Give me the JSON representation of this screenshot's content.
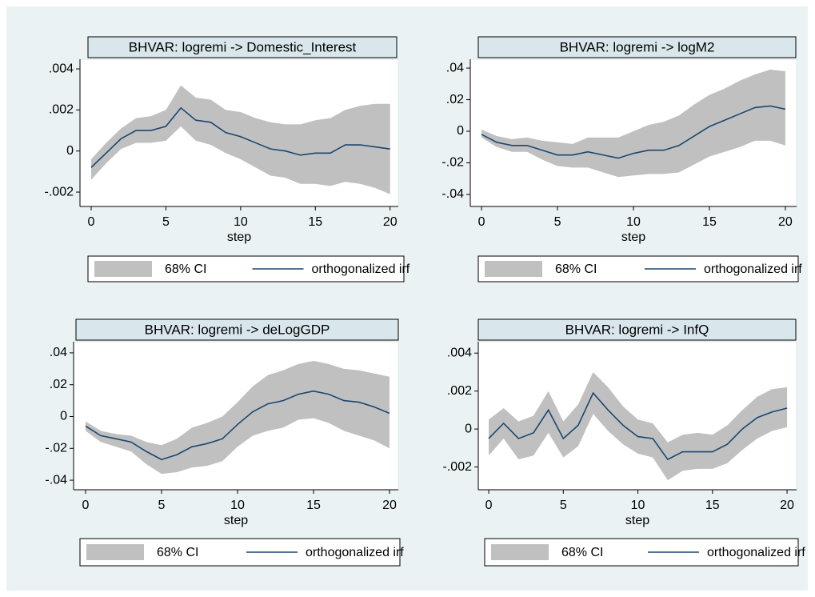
{
  "chart_data": [
    {
      "type": "line",
      "title": "BHVAR: logremi -> Domestic_Interest",
      "xlabel": "step",
      "x": [
        0,
        1,
        2,
        3,
        4,
        5,
        6,
        7,
        8,
        9,
        10,
        11,
        12,
        13,
        14,
        15,
        16,
        17,
        18,
        19,
        20
      ],
      "xlim": [
        -0.75,
        20.55
      ],
      "xticks": [
        0,
        5,
        10,
        15,
        20
      ],
      "ylim": [
        -0.0027,
        0.00447
      ],
      "yticks": [
        {
          "value": -0.002,
          "label": "-.002"
        },
        0,
        {
          "value": 0.002,
          "label": ".002"
        },
        {
          "value": 0.004,
          "label": ".004"
        }
      ],
      "legend": "bottom",
      "series": [
        {
          "name": "68% CI",
          "color": "#c0c0c0",
          "lower": [
            -0.0014,
            -0.0006,
            0.0001,
            0.0004,
            0.0004,
            0.0005,
            0.0012,
            0.0005,
            0.0003,
            -0.0001,
            -0.0004,
            -0.0008,
            -0.0012,
            -0.0013,
            -0.0016,
            -0.0016,
            -0.0017,
            -0.0015,
            -0.0016,
            -0.0018,
            -0.0021
          ],
          "upper": [
            -0.0004,
            0.0004,
            0.0011,
            0.0016,
            0.0017,
            0.002,
            0.0032,
            0.0026,
            0.0025,
            0.002,
            0.0019,
            0.0016,
            0.0014,
            0.0013,
            0.0013,
            0.0015,
            0.0016,
            0.002,
            0.0022,
            0.0023,
            0.0023
          ]
        },
        {
          "name": "orthogonalized irf",
          "color": "#1a476f",
          "values": [
            -0.0008,
            -0.0001,
            0.0006,
            0.001,
            0.001,
            0.0012,
            0.0021,
            0.0015,
            0.0014,
            0.0009,
            0.0007,
            0.0004,
            0.0001,
            0.0,
            -0.0002,
            -0.0001,
            -0.0001,
            0.0003,
            0.0003,
            0.0002,
            0.0001
          ]
        }
      ]
    },
    {
      "type": "line",
      "title": "BHVAR: logremi -> logM2",
      "xlabel": "step",
      "x": [
        0,
        1,
        2,
        3,
        4,
        5,
        6,
        7,
        8,
        9,
        10,
        11,
        12,
        13,
        14,
        15,
        16,
        17,
        18,
        19,
        20
      ],
      "xlim": [
        -0.74,
        20.74
      ],
      "xticks": [
        0,
        5,
        10,
        15,
        20
      ],
      "ylim": [
        -0.0476,
        0.0456
      ],
      "yticks": [
        {
          "value": -0.04,
          "label": "-.04"
        },
        {
          "value": -0.02,
          "label": "-.02"
        },
        0,
        {
          "value": 0.02,
          "label": ".02"
        },
        {
          "value": 0.04,
          "label": ".04"
        }
      ],
      "legend": "bottom",
      "series": [
        {
          "name": "68% CI",
          "color": "#c0c0c0",
          "lower": [
            -0.004,
            -0.01,
            -0.013,
            -0.013,
            -0.018,
            -0.022,
            -0.023,
            -0.023,
            -0.026,
            -0.029,
            -0.028,
            -0.027,
            -0.027,
            -0.026,
            -0.021,
            -0.016,
            -0.013,
            -0.01,
            -0.006,
            -0.006,
            -0.009
          ],
          "upper": [
            0.001,
            -0.003,
            -0.005,
            -0.004,
            -0.006,
            -0.007,
            -0.008,
            -0.004,
            -0.004,
            -0.004,
            0.0,
            0.004,
            0.006,
            0.01,
            0.017,
            0.023,
            0.027,
            0.032,
            0.036,
            0.039,
            0.038
          ]
        },
        {
          "name": "orthogonalized irf",
          "color": "#1a476f",
          "values": [
            -0.002,
            -0.007,
            -0.009,
            -0.009,
            -0.012,
            -0.015,
            -0.015,
            -0.013,
            -0.015,
            -0.017,
            -0.014,
            -0.012,
            -0.012,
            -0.009,
            -0.003,
            0.003,
            0.007,
            0.011,
            0.015,
            0.016,
            0.014
          ]
        }
      ]
    },
    {
      "type": "line",
      "title": "BHVAR: logremi -> deLogGDP",
      "xlabel": "step",
      "x": [
        0,
        1,
        2,
        3,
        4,
        5,
        6,
        7,
        8,
        9,
        10,
        11,
        12,
        13,
        14,
        15,
        16,
        17,
        18,
        19,
        20
      ],
      "xlim": [
        -0.79,
        20.58
      ],
      "xticks": [
        0,
        5,
        10,
        15,
        20
      ],
      "ylim": [
        -0.046,
        0.047
      ],
      "yticks": [
        {
          "value": -0.04,
          "label": "-.04"
        },
        {
          "value": -0.02,
          "label": "-.02"
        },
        0,
        {
          "value": 0.02,
          "label": ".02"
        },
        {
          "value": 0.04,
          "label": ".04"
        }
      ],
      "legend": "bottom",
      "series": [
        {
          "name": "68% CI",
          "color": "#c0c0c0",
          "lower": [
            -0.009,
            -0.016,
            -0.019,
            -0.022,
            -0.03,
            -0.036,
            -0.035,
            -0.032,
            -0.031,
            -0.028,
            -0.019,
            -0.012,
            -0.009,
            -0.007,
            -0.002,
            -0.001,
            -0.004,
            -0.009,
            -0.012,
            -0.015,
            -0.02
          ],
          "upper": [
            -0.003,
            -0.009,
            -0.011,
            -0.012,
            -0.016,
            -0.018,
            -0.014,
            -0.007,
            -0.004,
            0.0,
            0.009,
            0.019,
            0.026,
            0.029,
            0.033,
            0.035,
            0.033,
            0.03,
            0.029,
            0.027,
            0.025
          ]
        },
        {
          "name": "orthogonalized irf",
          "color": "#1a476f",
          "values": [
            -0.006,
            -0.012,
            -0.014,
            -0.016,
            -0.022,
            -0.027,
            -0.024,
            -0.019,
            -0.017,
            -0.014,
            -0.005,
            0.003,
            0.008,
            0.01,
            0.014,
            0.016,
            0.014,
            0.01,
            0.009,
            0.006,
            0.002
          ]
        }
      ]
    },
    {
      "type": "line",
      "title": "BHVAR: logremi -> InfQ",
      "xlabel": "step",
      "x": [
        0,
        1,
        2,
        3,
        4,
        5,
        6,
        7,
        8,
        9,
        10,
        11,
        12,
        13,
        14,
        15,
        16,
        17,
        18,
        19,
        20
      ],
      "xlim": [
        -0.7,
        20.64
      ],
      "xticks": [
        0,
        5,
        10,
        15,
        20
      ],
      "ylim": [
        -0.0032,
        0.0046
      ],
      "yticks": [
        {
          "value": -0.002,
          "label": "-.002"
        },
        0,
        {
          "value": 0.002,
          "label": ".002"
        },
        {
          "value": 0.004,
          "label": ".004"
        }
      ],
      "legend": "bottom",
      "series": [
        {
          "name": "68% CI",
          "color": "#c0c0c0",
          "lower": [
            -0.0014,
            -0.0005,
            -0.0016,
            -0.0014,
            -0.0002,
            -0.0015,
            -0.0009,
            0.0008,
            -0.0001,
            -0.0008,
            -0.0013,
            -0.0015,
            -0.0027,
            -0.0022,
            -0.0021,
            -0.0021,
            -0.0018,
            -0.0011,
            -0.0005,
            -0.0001,
            0.0001
          ],
          "upper": [
            0.0005,
            0.0011,
            0.0004,
            0.0007,
            0.002,
            0.0004,
            0.0013,
            0.003,
            0.0022,
            0.0012,
            0.0005,
            0.0003,
            -0.0007,
            -0.0003,
            -0.0002,
            -0.0003,
            0.0002,
            0.001,
            0.0017,
            0.0021,
            0.0022
          ]
        },
        {
          "name": "orthogonalized irf",
          "color": "#1a476f",
          "values": [
            -0.0005,
            0.0003,
            -0.0005,
            -0.0002,
            0.001,
            -0.0005,
            0.0002,
            0.0019,
            0.001,
            0.0002,
            -0.0004,
            -0.0005,
            -0.0016,
            -0.0012,
            -0.0012,
            -0.0012,
            -0.0008,
            0.0,
            0.0006,
            0.0009,
            0.0011
          ]
        }
      ]
    }
  ]
}
